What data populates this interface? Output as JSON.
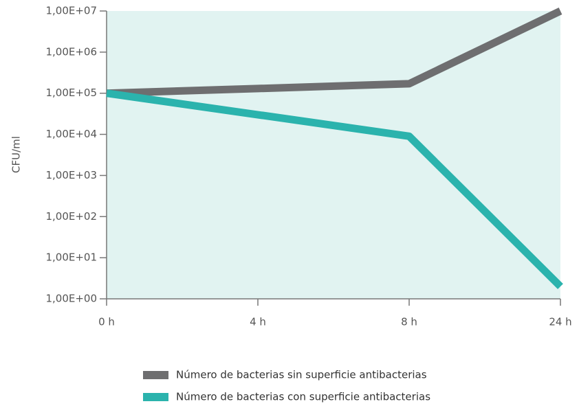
{
  "chart_data": {
    "type": "line",
    "y_label": "CFU/ml",
    "categories": [
      "0 h",
      "4 h",
      "8 h",
      "24 h"
    ],
    "series": [
      {
        "name": "Número de bacterias sin superficie antibacterias",
        "color": "#6e6e70",
        "values": [
          100000,
          130000,
          170000,
          10000000
        ]
      },
      {
        "name": "Número de bacterias con superficie antibacterias",
        "color": "#2bb3ad",
        "values": [
          100000,
          30000,
          9000,
          2
        ]
      }
    ],
    "yscale": "log",
    "ylim": [
      1,
      10000000
    ],
    "yticks": [
      {
        "value": 1,
        "label": "1,00E+00"
      },
      {
        "value": 10,
        "label": "1,00E+01"
      },
      {
        "value": 100,
        "label": "1,00E+02"
      },
      {
        "value": 1000,
        "label": "1,00E+03"
      },
      {
        "value": 10000,
        "label": "1,00E+04"
      },
      {
        "value": 100000,
        "label": "1,00E+05"
      },
      {
        "value": 1000000,
        "label": "1,00E+06"
      },
      {
        "value": 10000000,
        "label": "1,00E+07"
      }
    ],
    "grid": false,
    "legend": "bottom",
    "plot_background": "#e1f3f1"
  }
}
